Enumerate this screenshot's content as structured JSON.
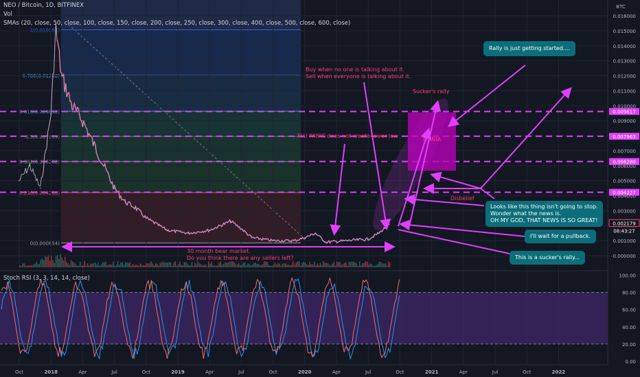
{
  "header": {
    "title": "NEO / Bitcoin, 1D, BITFINEX",
    "volume_label": "Vol",
    "sma_label": "SMAs (20, close, 50, close, 100, close, 150, close, 200, close, 250, close, 300, close, 400, close, 500, close, 600, close)"
  },
  "rsi_label": "Stoch RSI (3, 3, 14, 14, close)",
  "price_axis": {
    "unit": "BTC",
    "ticks": [
      "0.016000",
      "0.015000",
      "0.014000",
      "0.013000",
      "0.012000",
      "0.011000",
      "0.010000",
      "0.009000",
      "0.008000",
      "0.007000",
      "0.006000",
      "0.005000",
      "0.004000",
      "0.003000",
      "0.002000",
      "0.001000",
      "-0.000000"
    ],
    "tags": [
      {
        "label": "0.009617",
        "color": "#e040fb"
      },
      {
        "label": "0.007963",
        "color": "#e040fb"
      },
      {
        "label": "0.006280",
        "color": "#e040fb"
      },
      {
        "label": "0.004227",
        "color": "#e040fb"
      },
      {
        "label": "0.002179",
        "color": "#131722",
        "border": "#ff3d70"
      },
      {
        "label": "08:43:27",
        "color": "#131722"
      }
    ]
  },
  "rsi_axis": {
    "ticks": [
      "100.00",
      "80.00",
      "60.00",
      "40.00",
      "20.00",
      "0.00"
    ]
  },
  "time_axis": {
    "ticks": [
      "Oct",
      "2018",
      "Apr",
      "Jul",
      "Oct",
      "2019",
      "Apr",
      "Jul",
      "Oct",
      "2020",
      "Apr",
      "Jul",
      "Oct",
      "2021",
      "Apr",
      "Jul",
      "Oct",
      "2022"
    ]
  },
  "fib_levels": [
    {
      "label": "1(0.015064)",
      "color": "#2962ff"
    },
    {
      "label": "0.786(0.01202)",
      "color": "#5b9bd5"
    },
    {
      "label": "0.618(0.009632)",
      "color": "#26a69a"
    },
    {
      "label": "0.5(0.007959)",
      "color": "#4caf50"
    },
    {
      "label": "0.382(0.006282)",
      "color": "#4caf50"
    },
    {
      "label": "0.236(0.004208)",
      "color": "#ef5350"
    },
    {
      "label": "0(0.000854)",
      "color": "#9e9e9e"
    }
  ],
  "annotations": {
    "buy_text_1": "Buy when no one is talking about it.",
    "buy_text_2": "Sell when everyone is talking about it.",
    "suckers_rally": "Sucker's rally",
    "flu_panic": "FLU PANIC does not create lower low",
    "disbelief": "Disbelief",
    "bear_market_1": "30 month bear market.",
    "bear_market_2": "Do you think there are any sellers left?",
    "box_label": "MANIA"
  },
  "callouts": {
    "rally": "Rally is just getting started....",
    "stop_1": "Looks like this thing isn't going to stop.",
    "stop_2": "Wonder what the news is.",
    "stop_3": "OH MY GOD, THAT NEWS IS SO GREAT!",
    "pullback": "I'll wait for a pullback.",
    "suckers": "This is a sucker's rally..."
  },
  "colors": {
    "background": "#131722",
    "magenta": "#e040fb",
    "callout": "#0b6e7a",
    "annotation_text": "#ff3d70",
    "price_line": "#b0b3bd",
    "rsi_k": "#2196f3",
    "rsi_d": "#ef6c6c"
  },
  "chart_data": {
    "type": "line",
    "title": "NEO / Bitcoin, 1D, BITFINEX",
    "ylabel": "BTC",
    "ylim": [
      0,
      0.0165
    ],
    "x": [
      "2017-10",
      "2017-11",
      "2017-12",
      "2018-01",
      "2018-01-15",
      "2018-02",
      "2018-03",
      "2018-04",
      "2018-05",
      "2018-06",
      "2018-07",
      "2018-08",
      "2018-09",
      "2018-10",
      "2018-12",
      "2019-02",
      "2019-04",
      "2019-06",
      "2019-07",
      "2019-08",
      "2019-10",
      "2019-12",
      "2020-01",
      "2020-02",
      "2020-03",
      "2020-05",
      "2020-07",
      "2020-08",
      "2020-09"
    ],
    "series": [
      {
        "values": [
          0.005,
          0.006,
          0.0045,
          0.0095,
          0.0151,
          0.012,
          0.01,
          0.009,
          0.0075,
          0.006,
          0.0045,
          0.0036,
          0.0032,
          0.0025,
          0.0017,
          0.0015,
          0.0017,
          0.0023,
          0.0018,
          0.0012,
          0.001,
          0.001,
          0.0012,
          0.0015,
          0.0009,
          0.001,
          0.0011,
          0.0015,
          0.0021
        ]
      }
    ],
    "horizontal_levels": [
      0.009617,
      0.007963,
      0.00628,
      0.004227
    ]
  }
}
